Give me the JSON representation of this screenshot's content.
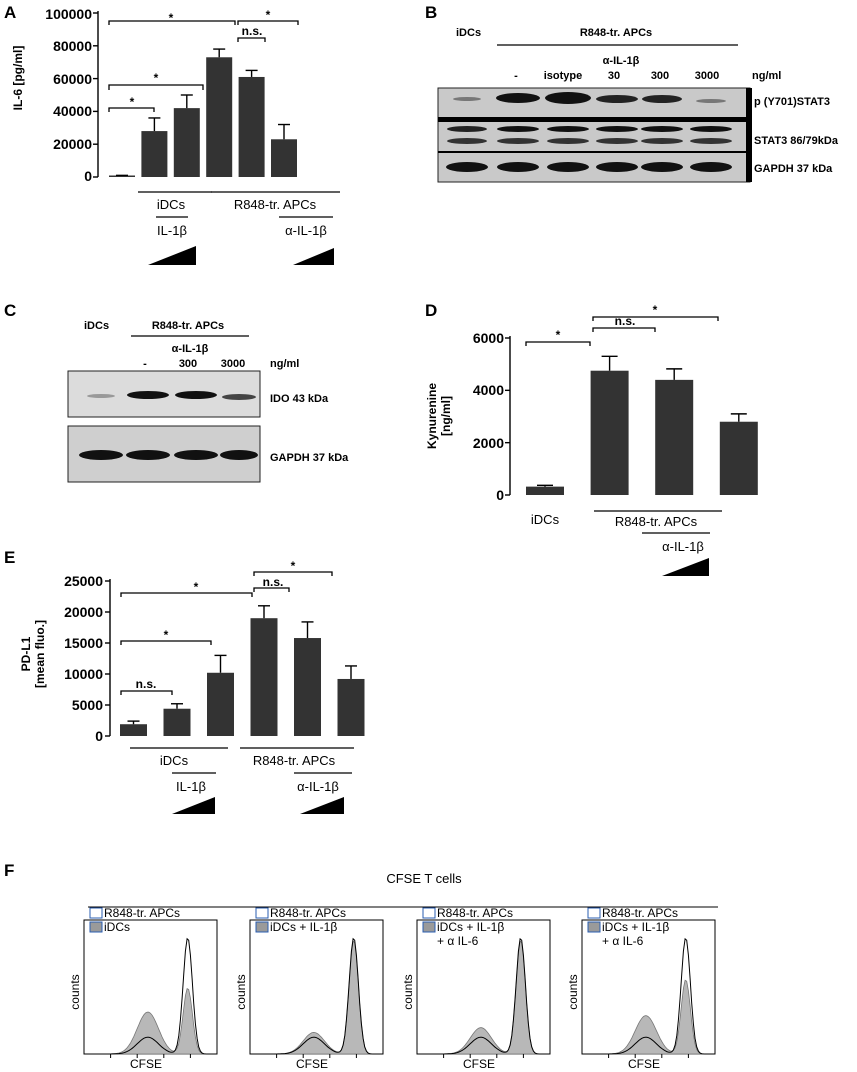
{
  "figure": {
    "panels": {
      "A": {
        "label": "A",
        "ylabel": "IL-6 [pg/ml]",
        "yticks": [
          "0",
          "20000",
          "40000",
          "60000",
          "80000",
          "100000"
        ],
        "group1": "iDCs",
        "group1_sub": "IL-1β",
        "group2": "R848-tr. APCs",
        "group2_sub": "α-IL-1β",
        "sig": [
          "*",
          "*",
          "*",
          "*",
          "n.s.",
          "*"
        ]
      },
      "B": {
        "label": "B",
        "header_left": "iDCs",
        "header_right": "R848-tr. APCs",
        "antibody": "α-IL-1β",
        "lanes": [
          "-",
          "isotype",
          "30",
          "300",
          "3000"
        ],
        "unit": "ng/ml",
        "rows": [
          "p (Y701)STAT3",
          "STAT3  86/79kDa",
          "GAPDH  37 kDa"
        ]
      },
      "C": {
        "label": "C",
        "header_left": "iDCs",
        "header_right": "R848-tr. APCs",
        "antibody": "α-IL-1β",
        "lanes": [
          "-",
          "300",
          "3000"
        ],
        "unit": "ng/ml",
        "rows": [
          "IDO 43 kDa",
          "GAPDH  37 kDa"
        ]
      },
      "D": {
        "label": "D",
        "ylabel_1": "Kynurenine",
        "ylabel_2": "[ng/ml]",
        "yticks": [
          "0",
          "2000",
          "4000",
          "6000"
        ],
        "group1": "iDCs",
        "group2": "R848-tr. APCs",
        "group2_sub": "α-IL-1β",
        "sig": [
          "*",
          "n.s.",
          "*"
        ]
      },
      "E": {
        "label": "E",
        "ylabel_1": "PD-L1",
        "ylabel_2": "[mean fluo.]",
        "yticks": [
          "0",
          "5000",
          "10000",
          "15000",
          "20000",
          "25000"
        ],
        "group1": "iDCs",
        "group1_sub": "IL-1β",
        "group2": "R848-tr. APCs",
        "group2_sub": "α-IL-1β",
        "sig": [
          "n.s.",
          "*",
          "*",
          "n.s.",
          "*"
        ]
      },
      "F": {
        "label": "F",
        "title": "CFSE T cells",
        "xlabel": "CFSE",
        "ylabel": "counts",
        "hist": [
          {
            "open": "R848-tr. APCs",
            "filled_1": "iDCs",
            "filled_2": ""
          },
          {
            "open": "R848-tr. APCs",
            "filled_1": "iDCs + IL-1β",
            "filled_2": ""
          },
          {
            "open": "R848-tr. APCs",
            "filled_1": "iDCs + IL-1β",
            "filled_2": "+ α IL-6"
          },
          {
            "open": "R848-tr. APCs",
            "filled_1": "iDCs + IL-1β",
            "filled_2": "+ α IL-6"
          }
        ]
      }
    }
  },
  "chart_data": [
    {
      "type": "bar",
      "panel": "A",
      "ylabel": "IL-6 [pg/ml]",
      "ylim": [
        0,
        100000
      ],
      "values": [
        500,
        28000,
        42000,
        73000,
        61000,
        23000
      ],
      "errors": [
        500,
        8000,
        8000,
        5000,
        4000,
        9000
      ]
    },
    {
      "type": "bar",
      "panel": "D",
      "ylabel": "Kynurenine [ng/ml]",
      "ylim": [
        0,
        6000
      ],
      "values": [
        320,
        4750,
        4400,
        2800
      ],
      "errors": [
        50,
        550,
        420,
        300
      ]
    },
    {
      "type": "bar",
      "panel": "E",
      "ylabel": "PD-L1 [mean fluo.]",
      "ylim": [
        0,
        25000
      ],
      "values": [
        1900,
        4400,
        10200,
        19000,
        15800,
        9200
      ],
      "errors": [
        500,
        800,
        2800,
        2000,
        2600,
        2100
      ]
    }
  ],
  "style": {
    "bar_color": "#333333",
    "fill_gray": "#b8b8b8"
  }
}
